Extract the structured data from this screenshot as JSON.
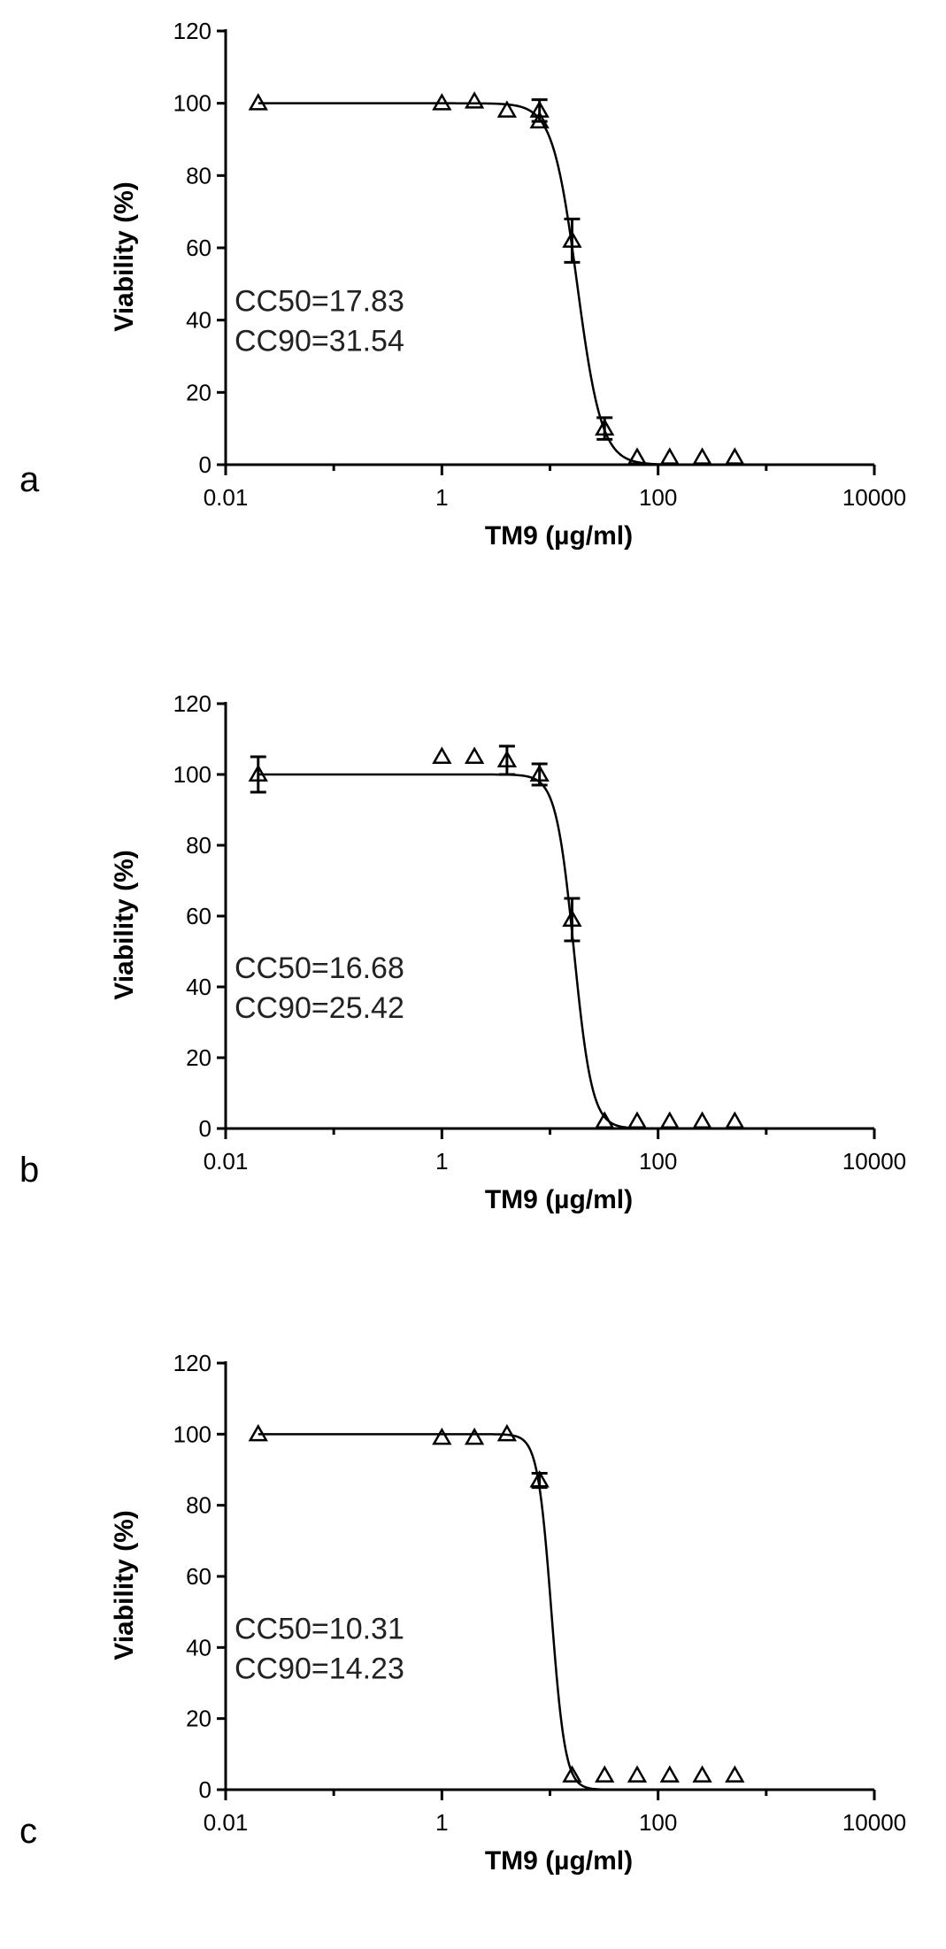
{
  "chart_data": [
    {
      "panel": "a",
      "type": "scatter",
      "xlabel": "TM9 (µg/ml)",
      "ylabel": "Viability (%)",
      "x_scale": "log",
      "xlim": [
        0.01,
        10000
      ],
      "ylim": [
        0,
        120
      ],
      "x_ticks": [
        "0.01",
        "1",
        "100",
        "10000"
      ],
      "y_ticks": [
        "0",
        "20",
        "40",
        "60",
        "80",
        "100",
        "120"
      ],
      "annotations": [
        "CC50=17.83",
        "CC90=31.54"
      ],
      "curve": {
        "top": 100,
        "bottom": 0,
        "ec50": 17.83,
        "ec90": 31.54
      },
      "points": [
        {
          "x": 0.02,
          "y": 100
        },
        {
          "x": 1.0,
          "y": 100
        },
        {
          "x": 2.0,
          "y": 100.5
        },
        {
          "x": 4.0,
          "y": 98
        },
        {
          "x": 8.0,
          "y": 98,
          "err": 3
        },
        {
          "x": 8.0,
          "y": 95
        },
        {
          "x": 16.0,
          "y": 62,
          "err": 6
        },
        {
          "x": 32.0,
          "y": 10,
          "err": 3
        },
        {
          "x": 64.0,
          "y": 2
        },
        {
          "x": 128.0,
          "y": 2
        },
        {
          "x": 256.0,
          "y": 2
        },
        {
          "x": 512.0,
          "y": 2
        }
      ]
    },
    {
      "panel": "b",
      "type": "scatter",
      "xlabel": "TM9 (µg/ml)",
      "ylabel": "Viability (%)",
      "x_scale": "log",
      "xlim": [
        0.01,
        10000
      ],
      "ylim": [
        0,
        120
      ],
      "x_ticks": [
        "0.01",
        "1",
        "100",
        "10000"
      ],
      "y_ticks": [
        "0",
        "20",
        "40",
        "60",
        "80",
        "100",
        "120"
      ],
      "annotations": [
        "CC50=16.68",
        "CC90=25.42"
      ],
      "curve": {
        "top": 100,
        "bottom": 0,
        "ec50": 16.68,
        "ec90": 25.42
      },
      "points": [
        {
          "x": 0.02,
          "y": 100,
          "err": 5
        },
        {
          "x": 1.0,
          "y": 105
        },
        {
          "x": 2.0,
          "y": 105
        },
        {
          "x": 4.0,
          "y": 104,
          "err": 4
        },
        {
          "x": 8.0,
          "y": 100,
          "err": 3
        },
        {
          "x": 16.0,
          "y": 59,
          "err": 6
        },
        {
          "x": 32.0,
          "y": 2
        },
        {
          "x": 64.0,
          "y": 2
        },
        {
          "x": 128.0,
          "y": 2
        },
        {
          "x": 256.0,
          "y": 2
        },
        {
          "x": 512.0,
          "y": 2
        }
      ]
    },
    {
      "panel": "c",
      "type": "scatter",
      "xlabel": "TM9 (µg/ml)",
      "ylabel": "Viability (%)",
      "x_scale": "log",
      "xlim": [
        0.01,
        10000
      ],
      "ylim": [
        0,
        120
      ],
      "x_ticks": [
        "0.01",
        "1",
        "100",
        "10000"
      ],
      "y_ticks": [
        "0",
        "20",
        "40",
        "60",
        "80",
        "100",
        "120"
      ],
      "annotations": [
        "CC50=10.31",
        "CC90=14.23"
      ],
      "curve": {
        "top": 100,
        "bottom": 0,
        "ec50": 10.31,
        "ec90": 14.23
      },
      "points": [
        {
          "x": 0.02,
          "y": 100
        },
        {
          "x": 1.0,
          "y": 99
        },
        {
          "x": 2.0,
          "y": 99
        },
        {
          "x": 4.0,
          "y": 100
        },
        {
          "x": 8.0,
          "y": 87,
          "err": 2
        },
        {
          "x": 16.0,
          "y": 4
        },
        {
          "x": 32.0,
          "y": 4
        },
        {
          "x": 64.0,
          "y": 4
        },
        {
          "x": 128.0,
          "y": 4
        },
        {
          "x": 256.0,
          "y": 4
        },
        {
          "x": 512.0,
          "y": 4
        }
      ]
    }
  ]
}
